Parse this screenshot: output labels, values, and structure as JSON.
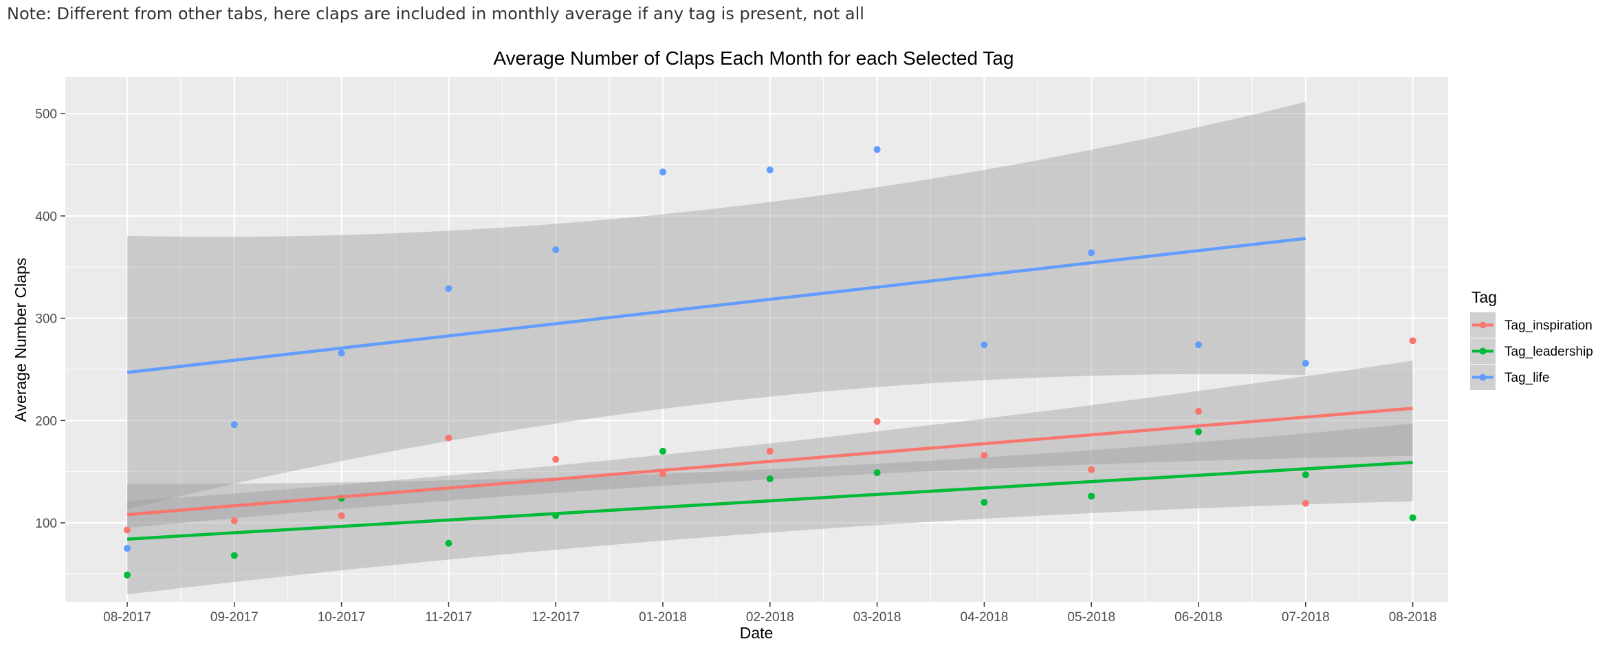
{
  "note": "Note: Different from other tabs, here claps are included in monthly average if any tag is present, not all",
  "chart_data": {
    "type": "scatter",
    "title": "Average Number of Claps Each Month for each Selected Tag",
    "xlabel": "Date",
    "ylabel": "Average Number Claps",
    "categories": [
      "08-2017",
      "09-2017",
      "10-2017",
      "11-2017",
      "12-2017",
      "01-2018",
      "02-2018",
      "03-2018",
      "04-2018",
      "05-2018",
      "06-2018",
      "07-2018",
      "08-2018"
    ],
    "yticks": [
      100,
      200,
      300,
      400,
      500
    ],
    "ylim": [
      30,
      535
    ],
    "grid": true,
    "legend": {
      "title": "Tag",
      "position": "right"
    },
    "series": [
      {
        "name": "Tag_inspiration",
        "color": "#F8766D",
        "values": [
          93,
          102,
          107,
          183,
          162,
          148,
          170,
          199,
          166,
          152,
          209,
          119,
          278
        ],
        "trend": {
          "start": 108,
          "end": 212,
          "band_lower": [
            96,
            165
          ],
          "band_upper": [
            122,
            258
          ]
        }
      },
      {
        "name": "Tag_leadership",
        "color": "#00BA38",
        "values": [
          49,
          68,
          124,
          80,
          107,
          170,
          143,
          149,
          120,
          126,
          189,
          147,
          105
        ],
        "trend": {
          "start": 84,
          "end": 159,
          "band_lower": [
            47,
            121
          ],
          "band_upper": [
            155,
            197
          ]
        }
      },
      {
        "name": "Tag_life",
        "color": "#619CFF",
        "values": [
          75,
          196,
          266,
          329,
          367,
          443,
          445,
          465,
          274,
          364,
          274,
          256,
          null
        ],
        "trend": {
          "start": 247,
          "end": 378,
          "band_lower": [
            114,
            245
          ],
          "band_upper": [
            381,
            512
          ]
        }
      }
    ]
  }
}
